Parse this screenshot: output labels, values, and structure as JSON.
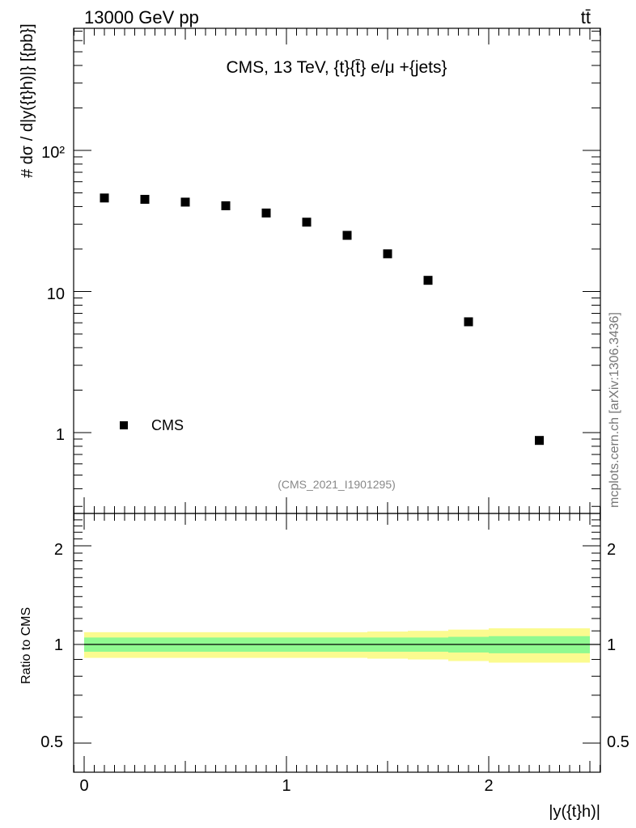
{
  "header": {
    "left": "13000 GeV pp",
    "right": "tt̄"
  },
  "side_label": "mcplots.cern.ch [arXiv:1306.3436]",
  "watermark": "(CMS_2021_I1901295)",
  "colors": {
    "marker": "#000000",
    "band_inner": "#90f990",
    "band_outer": "#fbfb8f",
    "watermark": "#888888"
  },
  "chart_data": [
    {
      "type": "scatter",
      "title": "CMS, 13 TeV, {t}{t̄} e/μ +{jets}",
      "ylabel": "# dσ / d|y({t}h)|} [{pb}]",
      "yscale": "log",
      "ylim": [
        0.3,
        700
      ],
      "xlim": [
        -0.05,
        2.55
      ],
      "ytick_labels": [
        "1",
        "10",
        "10²"
      ],
      "series": [
        {
          "name": "CMS",
          "x": [
            0.1,
            0.3,
            0.5,
            0.7,
            0.9,
            1.1,
            1.3,
            1.5,
            1.7,
            1.9,
            2.25
          ],
          "values": [
            46,
            45,
            43,
            40.5,
            36,
            31,
            25,
            18.5,
            12,
            6.1,
            0.88
          ]
        }
      ],
      "legend": {
        "entries": [
          "CMS"
        ],
        "position": "bottom-left"
      }
    },
    {
      "type": "area",
      "ylabel": "Ratio to CMS",
      "xlabel": "|y({t}h)|",
      "ylim": [
        0.4,
        2.4
      ],
      "xlim": [
        -0.05,
        2.55
      ],
      "xtick_labels": [
        "0",
        "1",
        "2"
      ],
      "ytick_labels": [
        "0.5",
        "1",
        "2"
      ],
      "x_edges": [
        0.0,
        0.2,
        0.4,
        0.6,
        0.8,
        1.0,
        1.2,
        1.4,
        1.6,
        1.8,
        2.0,
        2.5
      ],
      "ratio_line": 1.0,
      "band_inner": [
        0.05,
        0.05,
        0.05,
        0.05,
        0.05,
        0.05,
        0.05,
        0.05,
        0.05,
        0.055,
        0.06
      ],
      "band_outer": [
        0.09,
        0.09,
        0.09,
        0.09,
        0.09,
        0.09,
        0.09,
        0.095,
        0.1,
        0.11,
        0.12
      ]
    }
  ]
}
